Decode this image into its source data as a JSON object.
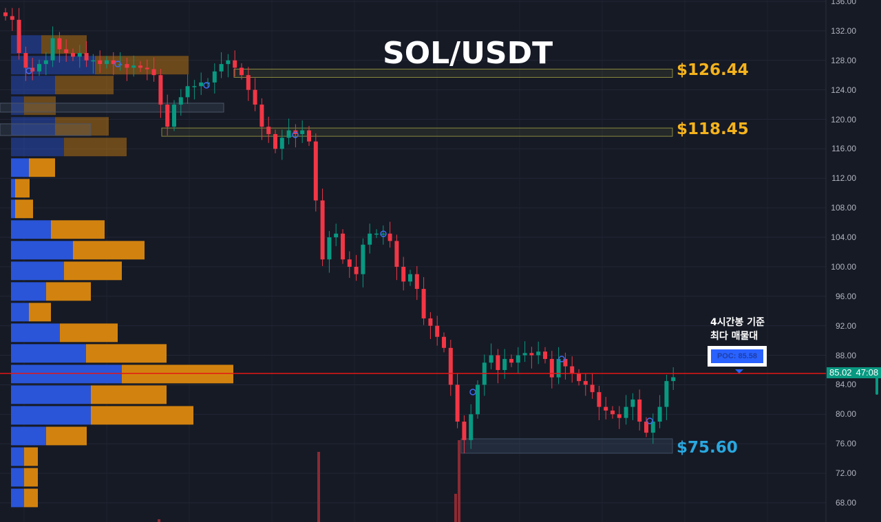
{
  "chart_data": {
    "type": "candlestick",
    "title": "SOL/USDT",
    "ylim": [
      68,
      136
    ],
    "y_ticks": [
      "136.00",
      "132.00",
      "128.00",
      "124.00",
      "120.00",
      "116.00",
      "112.00",
      "108.00",
      "104.00",
      "100.00",
      "96.00",
      "92.00",
      "88.00",
      "84.00",
      "80.00",
      "76.00",
      "72.00",
      "68.00"
    ],
    "closes": [
      134,
      133.5,
      129,
      127,
      126.5,
      127.5,
      128,
      131,
      129.5,
      129,
      128.5,
      129,
      128,
      128,
      127.5,
      128,
      127.5,
      127.5,
      127,
      127.3,
      127,
      126.8,
      126,
      122,
      119,
      122,
      123,
      124.5,
      124.5,
      125,
      125,
      126.5,
      127.5,
      128,
      127,
      126,
      124,
      122,
      119,
      118,
      116,
      117.5,
      118.5,
      118,
      118.5,
      117,
      109,
      101,
      104,
      104.5,
      101,
      100,
      99,
      103,
      104.5,
      104.5,
      104.5,
      103.5,
      100,
      98,
      99,
      97,
      93,
      92,
      90.5,
      89,
      84,
      79,
      76.5,
      80,
      84,
      87,
      88,
      86,
      87.5,
      87,
      88,
      88.3,
      88,
      88.5,
      87.5,
      85,
      87.5,
      86.5,
      85.5,
      84.5,
      84,
      83,
      81,
      80.5,
      80,
      79.5,
      81,
      82,
      79,
      77.5,
      79,
      81,
      84.5,
      85.02
    ],
    "volume_profile": [
      {
        "high": 131.5,
        "low": 128.8,
        "buy": 44,
        "sell": 66
      },
      {
        "high": 128.7,
        "low": 126.0,
        "buy": 122,
        "sell": 136
      },
      {
        "high": 126.0,
        "low": 123.3,
        "buy": 64,
        "sell": 85
      },
      {
        "high": 123.2,
        "low": 120.5,
        "buy": 19,
        "sell": 46
      },
      {
        "high": 120.4,
        "low": 117.7,
        "buy": 64,
        "sell": 78
      },
      {
        "high": 117.6,
        "low": 114.9,
        "buy": 77,
        "sell": 91
      },
      {
        "high": 114.8,
        "low": 112.1,
        "buy": 26,
        "sell": 38
      },
      {
        "high": 112.0,
        "low": 109.3,
        "buy": 6,
        "sell": 21
      },
      {
        "high": 109.2,
        "low": 106.5,
        "buy": 6,
        "sell": 26
      },
      {
        "high": 106.4,
        "low": 103.7,
        "buy": 58,
        "sell": 78
      },
      {
        "high": 103.6,
        "low": 100.9,
        "buy": 90,
        "sell": 104
      },
      {
        "high": 100.8,
        "low": 98.1,
        "buy": 77,
        "sell": 84
      },
      {
        "high": 98.0,
        "low": 95.3,
        "buy": 51,
        "sell": 65
      },
      {
        "high": 95.2,
        "low": 92.5,
        "buy": 26,
        "sell": 32
      },
      {
        "high": 92.4,
        "low": 89.7,
        "buy": 71,
        "sell": 84
      },
      {
        "high": 89.6,
        "low": 86.9,
        "buy": 109,
        "sell": 117
      },
      {
        "high": 86.8,
        "low": 84.1,
        "buy": 161,
        "sell": 162
      },
      {
        "high": 84.0,
        "low": 81.3,
        "buy": 116,
        "sell": 110
      },
      {
        "high": 81.2,
        "low": 78.5,
        "buy": 116,
        "sell": 149
      },
      {
        "high": 78.4,
        "low": 75.7,
        "buy": 51,
        "sell": 59
      },
      {
        "high": 75.6,
        "low": 72.9,
        "buy": 19,
        "sell": 20
      },
      {
        "high": 72.8,
        "low": 70.1,
        "buy": 19,
        "sell": 20
      },
      {
        "high": 70.0,
        "low": 67.3,
        "buy": 19,
        "sell": 20
      }
    ],
    "levels": [
      {
        "label": "$126.44",
        "price": 126.44,
        "color": "#f5b31c"
      },
      {
        "label": "$118.45",
        "price": 118.45,
        "color": "#f5b31c"
      },
      {
        "label": "$75.60",
        "price": 75.6,
        "color": "#29a8e0"
      }
    ],
    "poc": {
      "label": "POC: 85.58",
      "value": 85.58,
      "line_color": "#e51616"
    },
    "annotation": [
      "4시간봉 기준",
      "최다 매물대"
    ],
    "last_price": "85.02",
    "countdown": "47:08",
    "colors": {
      "up": "#089981",
      "down": "#f23645",
      "buy_volume": "#2a55d8",
      "sell_volume": "#d2830f",
      "background": "#161a25"
    }
  }
}
